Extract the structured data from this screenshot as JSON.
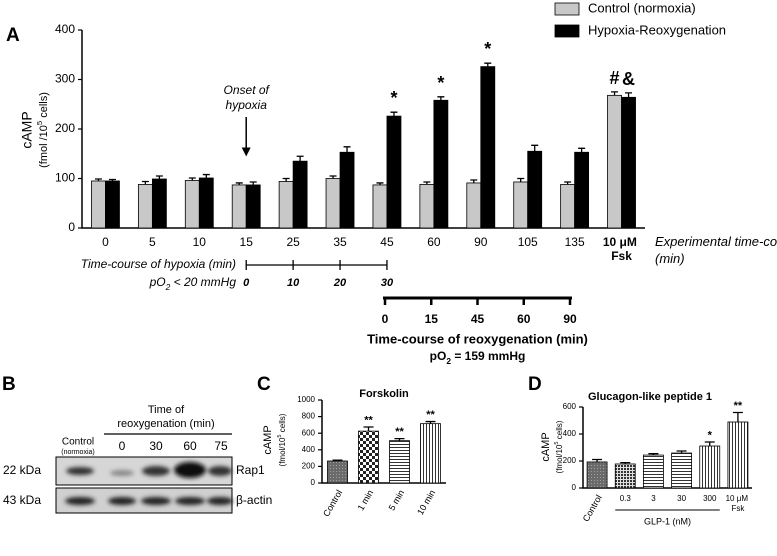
{
  "chart_data": [
    {
      "type": "bar",
      "panel": "A",
      "ylabel": "cAMP",
      "ylabel2": {
        "pre": "(fmol /10",
        "sup": "5",
        "post": " cells)"
      },
      "categories": [
        "0",
        "5",
        "10",
        "15",
        "25",
        "35",
        "45",
        "60",
        "90",
        "105",
        "135",
        "10 μM Fsk"
      ],
      "xlabel": "Experimental time-course (min)",
      "series": [
        {
          "name": "Control (normoxia)",
          "color": "#c8c8c8",
          "values": [
            95,
            88,
            96,
            87,
            94,
            100,
            87,
            88,
            91,
            93,
            88,
            268
          ],
          "errors": [
            4,
            6,
            5,
            4,
            6,
            5,
            4,
            5,
            6,
            7,
            5,
            7
          ],
          "significance": [
            null,
            null,
            null,
            null,
            null,
            null,
            null,
            null,
            null,
            null,
            null,
            "#"
          ]
        },
        {
          "name": "Hypoxia-Reoxygenation",
          "color": "#000000",
          "values": [
            95,
            99,
            101,
            87,
            135,
            153,
            226,
            258,
            326,
            155,
            153,
            264
          ],
          "errors": [
            3,
            6,
            7,
            6,
            10,
            11,
            8,
            7,
            7,
            12,
            8,
            9
          ],
          "significance": [
            null,
            null,
            null,
            null,
            null,
            null,
            "*",
            "*",
            "*",
            null,
            null,
            "&"
          ]
        }
      ],
      "ylim": [
        0,
        400
      ],
      "yticks": [
        0,
        100,
        200,
        300,
        400
      ],
      "grid": false,
      "legend": "upper right",
      "annotation": {
        "line1": "Onset of",
        "line2": "hypoxia"
      },
      "hypoxia_timeline": {
        "label": "Time-course of hypoxia (min)",
        "condition": {
          "pre": "pO",
          "sub": "2",
          "post": " < 20 mmHg"
        },
        "ticks": [
          "0",
          "10",
          "20",
          "30"
        ]
      },
      "reoxygenation_timeline": {
        "label": "Time-course of reoxygenation (min)",
        "condition": {
          "pre": "pO",
          "sub": "2",
          "post": " = 159 mmHg"
        },
        "ticks": [
          "0",
          "15",
          "45",
          "60",
          "90"
        ]
      }
    },
    {
      "type": "bar",
      "panel": "C",
      "title": "Forskolin",
      "ylabel": "cAMP",
      "ylabel2": {
        "pre": "(fmol/10",
        "sup": "5",
        "post": " cells)"
      },
      "categories": [
        "Control",
        "1 min",
        "5 min",
        "10 min"
      ],
      "values": [
        265,
        625,
        510,
        715
      ],
      "errors": [
        10,
        50,
        25,
        25
      ],
      "significance": [
        null,
        "**",
        "**",
        "**"
      ],
      "fills": [
        "dense",
        "checker",
        "hlines",
        "vlines"
      ],
      "ylim": [
        0,
        1000
      ],
      "yticks": [
        0,
        200,
        400,
        600,
        800,
        1000
      ],
      "grid": false
    },
    {
      "type": "bar",
      "panel": "D",
      "title": "Glucagon-like peptide 1",
      "ylabel": "cAMP",
      "ylabel2": {
        "pre": "(fmol/10",
        "sup": "5",
        "post": " cells)"
      },
      "categories": [
        "Control",
        "0.3",
        "3",
        "30",
        "300",
        "10 μM Fsk"
      ],
      "group_label": "GLP-1 (nM)",
      "values": [
        193,
        178,
        244,
        259,
        311,
        489
      ],
      "errors": [
        18,
        10,
        10,
        15,
        30,
        70
      ],
      "significance": [
        null,
        null,
        null,
        null,
        "*",
        "**"
      ],
      "fills": [
        "dense",
        "dots",
        "hlines",
        "hlines",
        "vlines",
        "vlines"
      ],
      "ylim": [
        0,
        600
      ],
      "yticks": [
        0,
        200,
        400,
        600
      ],
      "grid": false
    }
  ],
  "blot": {
    "panel": "B",
    "header1": "Time of",
    "header2": "reoxygenation (min)",
    "control1": "Control",
    "control2": "(normoxia)",
    "lanes": [
      "0",
      "30",
      "60",
      "75"
    ],
    "rows": [
      {
        "size": "22 kDa",
        "protein": "Rap1"
      },
      {
        "size": "43 kDa",
        "protein": "β-actin"
      }
    ]
  }
}
